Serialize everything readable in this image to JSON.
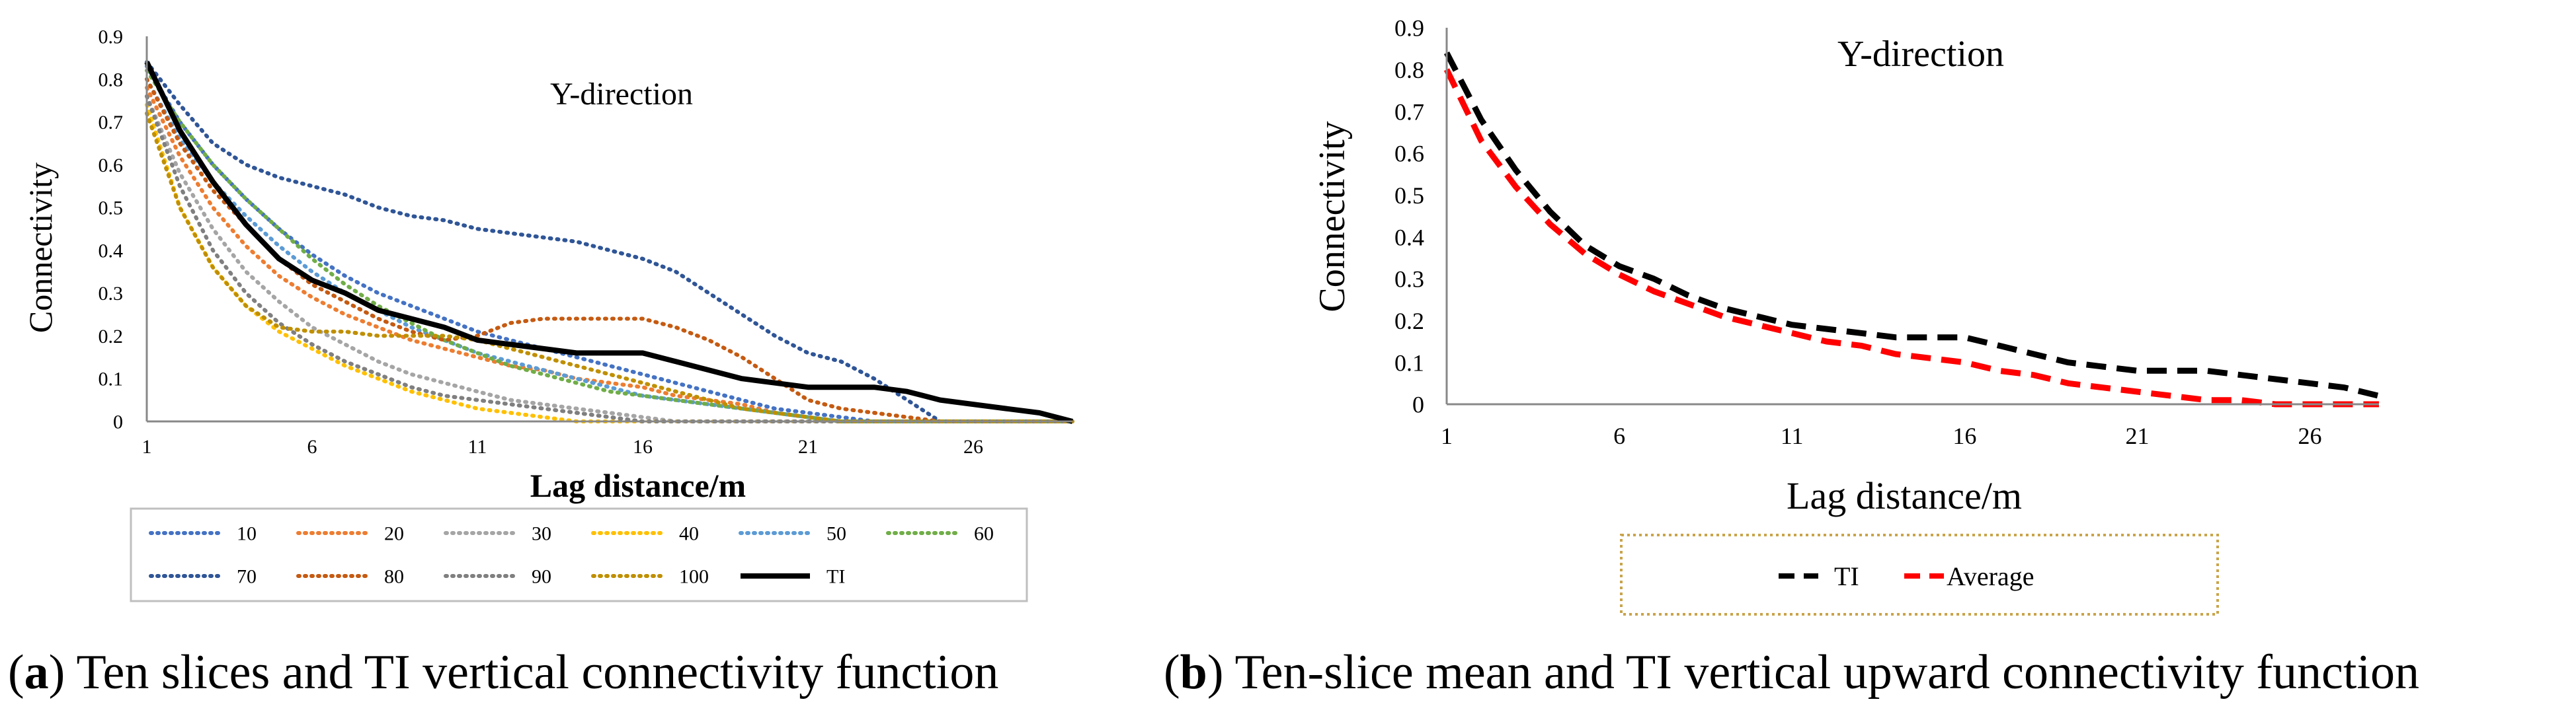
{
  "chart_data": [
    {
      "type": "line",
      "title": "Y-direction",
      "xlabel": "Lag distance/m",
      "ylabel": "Connectivity",
      "xlim": [
        1,
        29
      ],
      "ylim": [
        0,
        0.9
      ],
      "xticks": [
        1,
        6,
        11,
        16,
        21,
        26
      ],
      "xtick_labels": [
        "1",
        "6",
        "11",
        "16",
        "21",
        "26"
      ],
      "yticks": [
        0,
        0.1,
        0.2,
        0.3,
        0.4,
        0.5,
        0.6,
        0.7,
        0.8,
        0.9
      ],
      "ytick_labels": [
        "0",
        "0.1",
        "0.2",
        "0.3",
        "0.4",
        "0.5",
        "0.6",
        "0.7",
        "0.8",
        "0.9"
      ],
      "grid": false,
      "legend_position": "bottom",
      "caption_tag": "a",
      "caption_text": "Ten slices and TI vertical connectivity function",
      "series": [
        {
          "name": "10",
          "color": "#4472C4",
          "dash": "dotted",
          "x": [
            1,
            2,
            3,
            4,
            5,
            6,
            7,
            8,
            9,
            10,
            11,
            12,
            13,
            14,
            15,
            16,
            17,
            18,
            19,
            20,
            21,
            22,
            23,
            24,
            25,
            26,
            27,
            28,
            29
          ],
          "values": [
            0.83,
            0.7,
            0.6,
            0.52,
            0.45,
            0.39,
            0.34,
            0.3,
            0.27,
            0.24,
            0.21,
            0.19,
            0.17,
            0.15,
            0.13,
            0.11,
            0.09,
            0.07,
            0.05,
            0.03,
            0.02,
            0.01,
            0,
            0,
            0,
            0,
            0,
            0,
            0
          ]
        },
        {
          "name": "20",
          "color": "#ED7D31",
          "dash": "dotted",
          "x": [
            1,
            2,
            3,
            4,
            5,
            6,
            7,
            8,
            9,
            10,
            11,
            12,
            13,
            14,
            15,
            16,
            17,
            18,
            19,
            20,
            21,
            22,
            23,
            24,
            25,
            26,
            27,
            28,
            29
          ],
          "values": [
            0.78,
            0.62,
            0.5,
            0.41,
            0.34,
            0.29,
            0.25,
            0.22,
            0.19,
            0.17,
            0.15,
            0.13,
            0.12,
            0.1,
            0.09,
            0.08,
            0.06,
            0.05,
            0.04,
            0.02,
            0.01,
            0,
            0,
            0,
            0,
            0,
            0,
            0,
            0
          ]
        },
        {
          "name": "30",
          "color": "#A5A5A5",
          "dash": "dotted",
          "x": [
            1,
            2,
            3,
            4,
            5,
            6,
            7,
            8,
            9,
            10,
            11,
            12,
            13,
            14,
            15,
            16,
            17,
            18,
            19,
            20,
            21,
            22,
            23,
            24,
            25,
            26,
            27,
            28,
            29
          ],
          "values": [
            0.76,
            0.58,
            0.45,
            0.35,
            0.28,
            0.22,
            0.18,
            0.14,
            0.11,
            0.09,
            0.07,
            0.05,
            0.04,
            0.03,
            0.02,
            0.01,
            0,
            0,
            0,
            0,
            0,
            0,
            0,
            0,
            0,
            0,
            0,
            0,
            0
          ]
        },
        {
          "name": "40",
          "color": "#FFC000",
          "dash": "dotted",
          "x": [
            1,
            2,
            3,
            4,
            5,
            6,
            7,
            8,
            9,
            10,
            11,
            12,
            13,
            14,
            15,
            16,
            17,
            18,
            19,
            20,
            21,
            22,
            23,
            24,
            25,
            26,
            27,
            28,
            29
          ],
          "values": [
            0.74,
            0.5,
            0.36,
            0.27,
            0.21,
            0.17,
            0.13,
            0.1,
            0.07,
            0.05,
            0.03,
            0.02,
            0.01,
            0,
            0,
            0,
            0,
            0,
            0,
            0,
            0,
            0,
            0,
            0,
            0,
            0,
            0,
            0,
            0
          ]
        },
        {
          "name": "50",
          "color": "#5B9BD5",
          "dash": "dotted",
          "x": [
            1,
            2,
            3,
            4,
            5,
            6,
            7,
            8,
            9,
            10,
            11,
            12,
            13,
            14,
            15,
            16,
            17,
            18,
            19,
            20,
            21,
            22,
            23,
            24,
            25,
            26,
            27,
            28,
            29
          ],
          "values": [
            0.8,
            0.66,
            0.56,
            0.48,
            0.41,
            0.35,
            0.3,
            0.26,
            0.22,
            0.19,
            0.16,
            0.14,
            0.12,
            0.1,
            0.08,
            0.06,
            0.05,
            0.04,
            0.03,
            0.02,
            0.01,
            0,
            0,
            0,
            0,
            0,
            0,
            0,
            0
          ]
        },
        {
          "name": "60",
          "color": "#70AD47",
          "dash": "dotted",
          "x": [
            1,
            2,
            3,
            4,
            5,
            6,
            7,
            8,
            9,
            10,
            11,
            12,
            13,
            14,
            15,
            16,
            17,
            18,
            19,
            20,
            21,
            22,
            23,
            24,
            25,
            26,
            27,
            28,
            29
          ],
          "values": [
            0.82,
            0.7,
            0.6,
            0.52,
            0.45,
            0.38,
            0.32,
            0.27,
            0.23,
            0.19,
            0.16,
            0.13,
            0.11,
            0.09,
            0.07,
            0.06,
            0.05,
            0.04,
            0.03,
            0.02,
            0.01,
            0,
            0,
            0,
            0,
            0,
            0,
            0,
            0
          ]
        },
        {
          "name": "70",
          "color": "#2F5597",
          "dash": "dotted",
          "x": [
            1,
            2,
            3,
            4,
            5,
            6,
            7,
            8,
            9,
            10,
            11,
            12,
            13,
            14,
            15,
            16,
            17,
            18,
            19,
            20,
            21,
            22,
            23,
            24,
            25,
            26,
            27,
            28,
            29
          ],
          "values": [
            0.84,
            0.74,
            0.65,
            0.6,
            0.57,
            0.55,
            0.53,
            0.5,
            0.48,
            0.47,
            0.45,
            0.44,
            0.43,
            0.42,
            0.4,
            0.38,
            0.35,
            0.3,
            0.25,
            0.2,
            0.16,
            0.14,
            0.1,
            0.05,
            0,
            0,
            0,
            0,
            0
          ]
        },
        {
          "name": "80",
          "color": "#C55A11",
          "dash": "dotted",
          "x": [
            1,
            2,
            3,
            4,
            5,
            6,
            7,
            8,
            9,
            10,
            11,
            12,
            13,
            14,
            15,
            16,
            17,
            18,
            19,
            20,
            21,
            22,
            23,
            24,
            25,
            26,
            27,
            28,
            29
          ],
          "values": [
            0.8,
            0.65,
            0.54,
            0.46,
            0.38,
            0.32,
            0.28,
            0.24,
            0.21,
            0.19,
            0.2,
            0.23,
            0.24,
            0.24,
            0.24,
            0.24,
            0.22,
            0.19,
            0.15,
            0.1,
            0.05,
            0.03,
            0.02,
            0.01,
            0,
            0,
            0,
            0,
            0
          ]
        },
        {
          "name": "90",
          "color": "#7F7F7F",
          "dash": "dotted",
          "x": [
            1,
            2,
            3,
            4,
            5,
            6,
            7,
            8,
            9,
            10,
            11,
            12,
            13,
            14,
            15,
            16,
            17,
            18,
            19,
            20,
            21,
            22,
            23,
            24,
            25,
            26,
            27,
            28,
            29
          ],
          "values": [
            0.76,
            0.55,
            0.4,
            0.3,
            0.23,
            0.18,
            0.14,
            0.11,
            0.08,
            0.06,
            0.05,
            0.04,
            0.03,
            0.02,
            0.01,
            0,
            0,
            0,
            0,
            0,
            0,
            0,
            0,
            0,
            0,
            0,
            0,
            0,
            0
          ]
        },
        {
          "name": "100",
          "color": "#BF8F00",
          "dash": "dotted",
          "x": [
            1,
            2,
            3,
            4,
            5,
            6,
            7,
            8,
            9,
            10,
            11,
            12,
            13,
            14,
            15,
            16,
            17,
            18,
            19,
            20,
            21,
            22,
            23,
            24,
            25,
            26,
            27,
            28,
            29
          ],
          "values": [
            0.72,
            0.5,
            0.36,
            0.27,
            0.22,
            0.21,
            0.21,
            0.2,
            0.2,
            0.2,
            0.19,
            0.17,
            0.15,
            0.13,
            0.11,
            0.09,
            0.07,
            0.05,
            0.03,
            0.02,
            0.01,
            0,
            0,
            0,
            0,
            0,
            0,
            0,
            0
          ]
        },
        {
          "name": "TI",
          "color": "#000000",
          "dash": "solid",
          "x": [
            1,
            2,
            3,
            4,
            5,
            6,
            7,
            8,
            9,
            10,
            11,
            12,
            13,
            14,
            15,
            16,
            17,
            18,
            19,
            20,
            21,
            22,
            23,
            24,
            25,
            26,
            27,
            28,
            29
          ],
          "values": [
            0.84,
            0.68,
            0.56,
            0.46,
            0.38,
            0.33,
            0.3,
            0.26,
            0.24,
            0.22,
            0.19,
            0.18,
            0.17,
            0.16,
            0.16,
            0.16,
            0.14,
            0.12,
            0.1,
            0.09,
            0.08,
            0.08,
            0.08,
            0.07,
            0.05,
            0.04,
            0.03,
            0.02,
            0
          ]
        }
      ]
    },
    {
      "type": "line",
      "title": "Y-direction",
      "xlabel": "Lag distance/m",
      "ylabel": "Connectivity",
      "xlim": [
        1,
        28
      ],
      "ylim": [
        0,
        0.9
      ],
      "xticks": [
        1,
        6,
        11,
        16,
        21,
        26
      ],
      "xtick_labels": [
        "1",
        "6",
        "11",
        "16",
        "21",
        "26"
      ],
      "yticks": [
        0,
        0.1,
        0.2,
        0.3,
        0.4,
        0.5,
        0.6,
        0.7,
        0.8,
        0.9
      ],
      "ytick_labels": [
        "0",
        "0.1",
        "0.2",
        "0.3",
        "0.4",
        "0.5",
        "0.6",
        "0.7",
        "0.8",
        "0.9"
      ],
      "grid": false,
      "legend_position": "bottom",
      "caption_tag": "b",
      "caption_text": "Ten-slice mean and TI vertical upward connectivity function",
      "series": [
        {
          "name": "TI",
          "color": "#000000",
          "dash": "dashed",
          "x": [
            1,
            2,
            3,
            4,
            5,
            6,
            7,
            8,
            9,
            10,
            11,
            12,
            13,
            14,
            15,
            16,
            17,
            18,
            19,
            20,
            21,
            22,
            23,
            24,
            25,
            26,
            27,
            28
          ],
          "values": [
            0.84,
            0.68,
            0.56,
            0.46,
            0.38,
            0.33,
            0.3,
            0.26,
            0.23,
            0.21,
            0.19,
            0.18,
            0.17,
            0.16,
            0.16,
            0.16,
            0.14,
            0.12,
            0.1,
            0.09,
            0.08,
            0.08,
            0.08,
            0.07,
            0.06,
            0.05,
            0.04,
            0.02
          ]
        },
        {
          "name": "Average",
          "color": "#FF0000",
          "dash": "dashed",
          "x": [
            1,
            2,
            3,
            4,
            5,
            6,
            7,
            8,
            9,
            10,
            11,
            12,
            13,
            14,
            15,
            16,
            17,
            18,
            19,
            20,
            21,
            22,
            23,
            24,
            25,
            26,
            27,
            28
          ],
          "values": [
            0.8,
            0.63,
            0.52,
            0.43,
            0.36,
            0.31,
            0.27,
            0.24,
            0.21,
            0.19,
            0.17,
            0.15,
            0.14,
            0.12,
            0.11,
            0.1,
            0.08,
            0.07,
            0.05,
            0.04,
            0.03,
            0.02,
            0.01,
            0.01,
            0,
            0,
            0,
            0
          ]
        }
      ]
    }
  ]
}
